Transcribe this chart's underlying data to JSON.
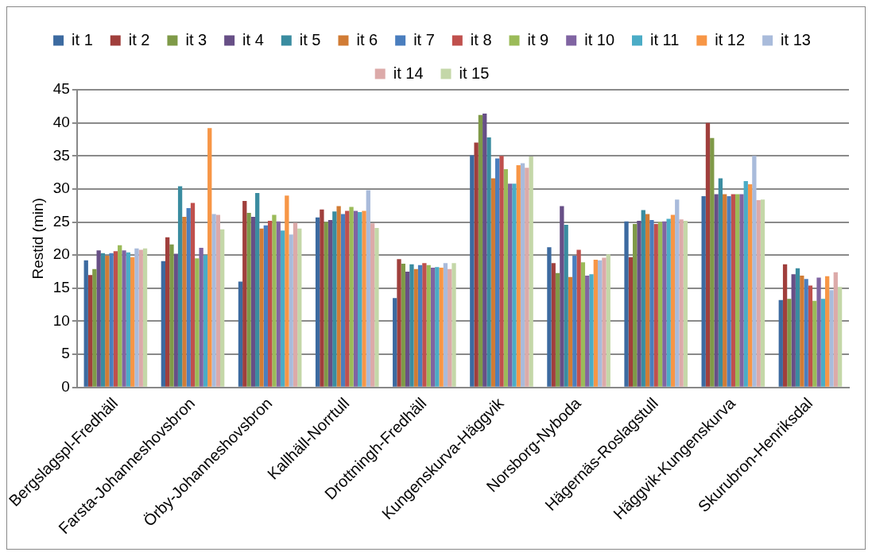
{
  "chart_data": {
    "type": "bar",
    "ylabel": "Restid (min)",
    "categories": [
      "Bergslagspl-Fredhäll",
      "Farsta-Johanneshovsbron",
      "Örby-Johanneshovsbron",
      "Kallhäll-Norrtull",
      "Drottningh-Fredhäll",
      "Kungenskurva-Häggvik",
      "Norsborg-Nyboda",
      "Hägernäs-Roslagstull",
      "Häggvik-Kungenskurva",
      "Skurubron-Henriksdal"
    ],
    "series": [
      {
        "name": "it 1",
        "color": "#3c6aa0",
        "values": [
          19.2,
          19.1,
          16.0,
          25.7,
          13.5,
          35.1,
          21.2,
          25.1,
          28.9,
          13.2
        ]
      },
      {
        "name": "it 2",
        "color": "#a03f3c",
        "values": [
          17.0,
          22.7,
          28.2,
          26.9,
          19.4,
          37.0,
          18.8,
          19.7,
          40.0,
          18.6
        ]
      },
      {
        "name": "it 3",
        "color": "#7f9a48",
        "values": [
          17.9,
          21.6,
          26.4,
          25.0,
          18.7,
          41.2,
          17.3,
          24.7,
          37.7,
          13.4
        ]
      },
      {
        "name": "it 4",
        "color": "#674f86",
        "values": [
          20.7,
          20.2,
          25.8,
          25.3,
          17.5,
          41.4,
          27.4,
          25.2,
          29.2,
          17.1
        ]
      },
      {
        "name": "it 5",
        "color": "#3a8ca0",
        "values": [
          20.3,
          30.4,
          29.4,
          26.6,
          18.6,
          37.8,
          24.6,
          26.8,
          31.6,
          18.0
        ]
      },
      {
        "name": "it 6",
        "color": "#d17c35",
        "values": [
          19.9,
          25.8,
          24.0,
          27.4,
          17.9,
          31.6,
          16.7,
          26.2,
          29.2,
          16.9
        ]
      },
      {
        "name": "it 7",
        "color": "#4a7ebe",
        "values": [
          20.3,
          27.1,
          24.5,
          26.2,
          18.5,
          34.6,
          19.9,
          25.3,
          28.9,
          16.4
        ]
      },
      {
        "name": "it 8",
        "color": "#c0504d",
        "values": [
          20.6,
          27.9,
          25.2,
          26.7,
          18.8,
          35.0,
          20.8,
          24.7,
          29.2,
          15.4
        ]
      },
      {
        "name": "it 9",
        "color": "#9bbb59",
        "values": [
          21.5,
          19.5,
          26.1,
          27.3,
          18.5,
          33.0,
          18.9,
          25.0,
          29.2,
          13.1
        ]
      },
      {
        "name": "it 10",
        "color": "#8064a2",
        "values": [
          20.7,
          21.1,
          25.1,
          26.7,
          18.1,
          30.8,
          16.9,
          25.1,
          29.2,
          16.6
        ]
      },
      {
        "name": "it 11",
        "color": "#4bacc6",
        "values": [
          20.4,
          20.0,
          23.7,
          26.5,
          18.2,
          30.8,
          17.1,
          25.5,
          31.2,
          13.4
        ]
      },
      {
        "name": "it 12",
        "color": "#f79646",
        "values": [
          19.7,
          39.2,
          29.0,
          26.7,
          18.1,
          33.6,
          19.3,
          26.1,
          30.7,
          16.8
        ]
      },
      {
        "name": "it 13",
        "color": "#a9bbdb",
        "values": [
          21.0,
          26.2,
          23.1,
          29.8,
          18.8,
          33.9,
          19.2,
          28.4,
          35.0,
          14.7
        ]
      },
      {
        "name": "it 14",
        "color": "#dcaaa9",
        "values": [
          20.8,
          26.1,
          24.9,
          24.8,
          17.9,
          33.2,
          19.6,
          25.4,
          28.3,
          17.4
        ]
      },
      {
        "name": "it 15",
        "color": "#c4d7a8",
        "values": [
          21.0,
          23.9,
          24.0,
          24.1,
          18.8,
          34.9,
          20.1,
          25.2,
          28.4,
          15.2
        ]
      }
    ],
    "ylim": [
      0,
      45
    ],
    "yticks": [
      0,
      5,
      10,
      15,
      20,
      25,
      30,
      35,
      40,
      45
    ],
    "grid": "y",
    "legend": "top"
  }
}
